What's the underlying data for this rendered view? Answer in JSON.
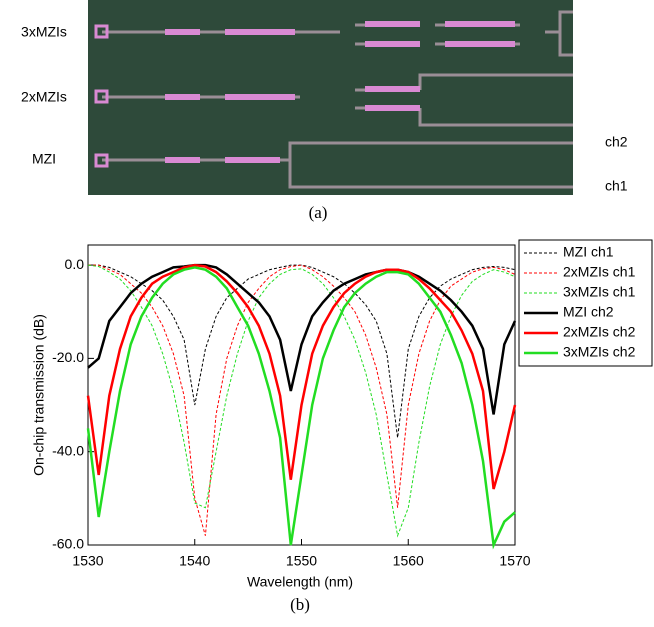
{
  "figure": {
    "panel_a": {
      "labels": [
        "3xMZIs",
        "2xMZIs",
        "MZI"
      ],
      "outputs": [
        "ch2",
        "ch1"
      ],
      "caption": "(a)"
    },
    "caption_b": "(b)"
  },
  "chart_data": {
    "type": "line",
    "xlabel": "Wavelength (nm)",
    "ylabel": "On-chip transmission (dB)",
    "xlim": [
      1530,
      1570
    ],
    "xticks": [
      1530,
      1540,
      1550,
      1560,
      1570
    ],
    "ylim": [
      -60,
      4.3
    ],
    "yticks": [
      {
        "value": -60,
        "label": "-60.0"
      },
      {
        "value": -40,
        "label": "-40.0"
      },
      {
        "value": -20,
        "label": "-20.0"
      },
      {
        "value": 0,
        "label": "0.0"
      }
    ],
    "legend": "outside-right",
    "x": [
      1530,
      1531,
      1532,
      1533,
      1534,
      1535,
      1536,
      1537,
      1538,
      1539,
      1540,
      1541,
      1542,
      1543,
      1544,
      1545,
      1546,
      1547,
      1548,
      1549,
      1550,
      1551,
      1552,
      1553,
      1554,
      1555,
      1556,
      1557,
      1558,
      1559,
      1560,
      1561,
      1562,
      1563,
      1564,
      1565,
      1566,
      1567,
      1568,
      1569,
      1570
    ],
    "series": [
      {
        "name": "MZI ch1",
        "color": "#000000",
        "dashed": true,
        "values": [
          0,
          0,
          -0.5,
          -1.5,
          -2.5,
          -4,
          -5.5,
          -7.5,
          -11,
          -16,
          -30,
          -18,
          -11,
          -7,
          -5,
          -3,
          -2,
          -1,
          -0.5,
          0,
          0,
          -0.5,
          -1.5,
          -2.5,
          -4,
          -6,
          -8.5,
          -12,
          -19,
          -37,
          -18,
          -11,
          -7,
          -4.5,
          -3,
          -2,
          -1,
          -0.5,
          -0.3,
          -0.5,
          -1
        ]
      },
      {
        "name": "2xMZIs ch1",
        "color": "#ff0000",
        "dashed": true,
        "values": [
          0,
          0,
          -1,
          -2,
          -4,
          -6,
          -9,
          -13,
          -19,
          -28,
          -50,
          -58,
          -32,
          -20,
          -13,
          -8,
          -5,
          -2.5,
          -1,
          -0.3,
          0,
          -1,
          -2.5,
          -4.5,
          -7,
          -10,
          -15,
          -22,
          -32,
          -52,
          -30,
          -19,
          -12,
          -7.5,
          -4.5,
          -3,
          -1.5,
          -0.8,
          -0.5,
          -1,
          -2
        ]
      },
      {
        "name": "3xMZIs ch1",
        "color": "#22dd22",
        "dashed": true,
        "values": [
          0,
          -0.3,
          -1.5,
          -3,
          -5.5,
          -9,
          -13,
          -19,
          -27,
          -38,
          -51,
          -52,
          -40,
          -28,
          -19,
          -12,
          -7,
          -4,
          -2,
          -1,
          -0.8,
          -2,
          -4,
          -7,
          -11,
          -16,
          -23,
          -32,
          -45,
          -58,
          -52,
          -38,
          -26,
          -17,
          -11,
          -6.5,
          -3.5,
          -2,
          -1,
          -1.5,
          -2.5
        ]
      },
      {
        "name": "MZI ch2",
        "color": "#000000",
        "dashed": false,
        "values": [
          -22,
          -20,
          -12,
          -9,
          -6,
          -4,
          -2.5,
          -1.5,
          -0.5,
          -0.3,
          0,
          0,
          -0.5,
          -2,
          -4,
          -6,
          -8,
          -11,
          -16,
          -27,
          -17,
          -11,
          -8,
          -5.5,
          -4,
          -3,
          -2,
          -1.5,
          -1,
          -1,
          -1.5,
          -2.5,
          -4,
          -5.5,
          -7.5,
          -10,
          -13,
          -18,
          -32,
          -17,
          -12
        ]
      },
      {
        "name": "2xMZIs ch2",
        "color": "#ff0000",
        "dashed": false,
        "values": [
          -28,
          -45,
          -28,
          -18,
          -11,
          -7,
          -4,
          -2.5,
          -1.5,
          -0.5,
          0,
          -0.3,
          -1.5,
          -3.5,
          -6,
          -9,
          -13,
          -19,
          -28,
          -46,
          -30,
          -19,
          -13,
          -9,
          -6,
          -4,
          -2.5,
          -1.5,
          -1,
          -1,
          -1.5,
          -3,
          -5,
          -7.5,
          -10,
          -14,
          -19,
          -27,
          -48,
          -40,
          -30
        ]
      },
      {
        "name": "3xMZIs ch2",
        "color": "#22dd22",
        "dashed": false,
        "values": [
          -35,
          -54,
          -40,
          -27,
          -17,
          -11,
          -7,
          -4,
          -2,
          -1,
          -0.5,
          -1,
          -2.5,
          -5,
          -9,
          -13,
          -19,
          -27,
          -37,
          -60,
          -45,
          -30,
          -20,
          -14,
          -9,
          -6,
          -4,
          -2.5,
          -1.5,
          -1.5,
          -2,
          -4,
          -7,
          -10,
          -15,
          -21,
          -30,
          -42,
          -60,
          -55,
          -53
        ]
      }
    ]
  }
}
